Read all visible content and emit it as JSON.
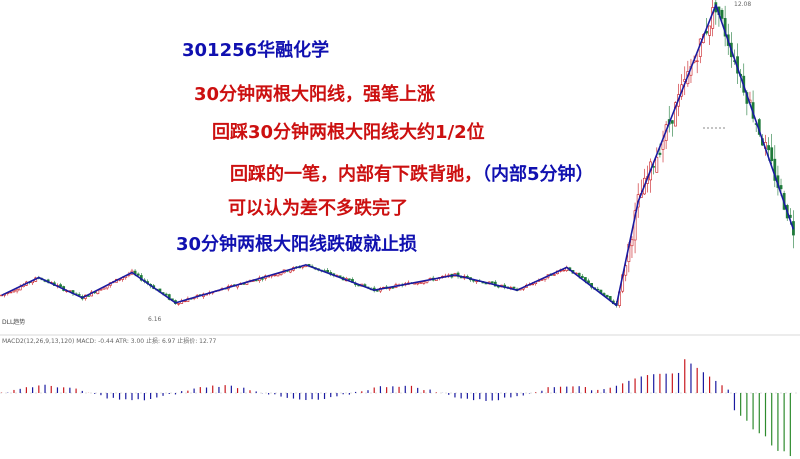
{
  "colors": {
    "up": "#c8181e",
    "down": "#1f7a3a",
    "zigzag": "#1a1aa0",
    "red_text": "#cc1010",
    "blue_text": "#1010b0"
  },
  "annotations": {
    "title": "301256华融化学",
    "line1": "30分钟两根大阳线，强笔上涨",
    "line2": "回踩30分钟两根大阳线大约1/2位",
    "line3_red": "回踩的一笔，内部有下跌背驰，",
    "line3_blue": "（内部5分钟）",
    "line4": "可以认为差不多跌完了",
    "line5": "30分钟两根大阳线跌破就止损"
  },
  "chart_data": {
    "type": "candlestick",
    "price_labels": {
      "peak": "12.08",
      "low": "6.16"
    },
    "main_indicator_label": "DLL趋势",
    "indicator_label": "MACD2(12,26,9,13,120) MACD: -0.44 ATR: 3.00 止损: 6.97 止损价: 12.77",
    "pen_points": [
      [
        0,
        6.35
      ],
      [
        12,
        6.7
      ],
      [
        26,
        6.3
      ],
      [
        42,
        6.8
      ],
      [
        56,
        6.2
      ],
      [
        98,
        6.95
      ],
      [
        120,
        6.45
      ],
      [
        146,
        6.75
      ],
      [
        166,
        6.45
      ],
      [
        182,
        6.9
      ],
      [
        198,
        6.15
      ],
      [
        205,
        8.2
      ],
      [
        230,
        12.08
      ],
      [
        255,
        7.65
      ]
    ],
    "price_range": [
      6.0,
      12.1
    ],
    "macd_range": [
      -0.6,
      0.32
    ],
    "bar_count": 256
  }
}
